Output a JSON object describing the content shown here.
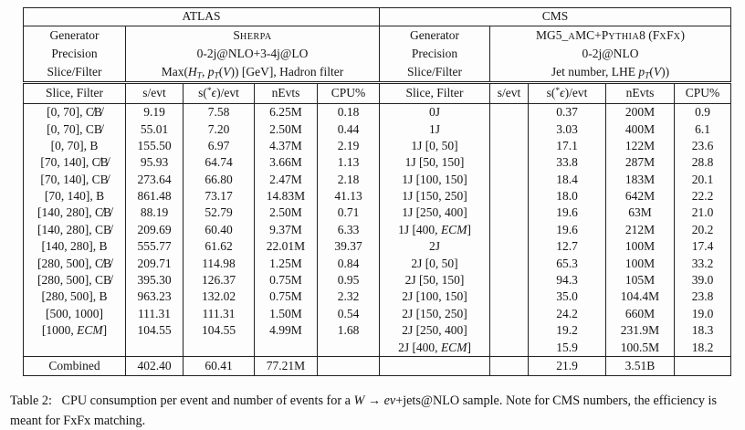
{
  "colors": {
    "text": "#161616",
    "border": "#222222",
    "background": "#fdfdfd"
  },
  "atlas": {
    "title": "ATLAS",
    "meta": {
      "labels": [
        "Generator",
        "Precision",
        "Slice/Filter"
      ],
      "generator": "S<span class=\"sc\">HERPA</span>",
      "precision": "0-2j@NLO+3-4j@LO",
      "slice_filter": "Max(<i>H<sub>T</sub></i>, <i>p<sub>T</sub></i>(<i>V</i>)) [GeV], Hadron filter"
    },
    "columns": [
      "Slice, Filter",
      "s/evt",
      "s(<sup>*</sup><i>ϵ</i>)/evt",
      "nEvts",
      "CPU%"
    ],
    "rows": [
      [
        "[0, 70], C̸B̸",
        "9.19",
        "7.58",
        "6.25M",
        "0.18"
      ],
      [
        "[0, 70], CB̸",
        "55.01",
        "7.20",
        "2.50M",
        "0.44"
      ],
      [
        "[0, 70], B",
        "155.50",
        "6.97",
        "4.37M",
        "2.19"
      ],
      [
        "[70, 140], C̸B̸",
        "95.93",
        "64.74",
        "3.66M",
        "1.13"
      ],
      [
        "[70, 140], CB̸",
        "273.64",
        "66.80",
        "2.47M",
        "2.18"
      ],
      [
        "[70, 140], B",
        "861.48",
        "73.17",
        "14.83M",
        "41.13"
      ],
      [
        "[140, 280], C̸B̸",
        "88.19",
        "52.79",
        "2.50M",
        "0.71"
      ],
      [
        "[140, 280], CB̸",
        "209.69",
        "60.40",
        "9.37M",
        "6.33"
      ],
      [
        "[140, 280], B",
        "555.77",
        "61.62",
        "22.01M",
        "39.37"
      ],
      [
        "[280, 500], C̸B̸",
        "209.71",
        "114.98",
        "1.25M",
        "0.84"
      ],
      [
        "[280, 500], CB̸",
        "395.30",
        "126.37",
        "0.75M",
        "0.95"
      ],
      [
        "[280, 500], B",
        "963.23",
        "132.02",
        "0.75M",
        "2.32"
      ],
      [
        "[500, 1000]",
        "111.31",
        "111.31",
        "1.50M",
        "0.54"
      ],
      [
        "[1000, <i>ECM</i>]",
        "104.55",
        "104.55",
        "4.99M",
        "1.68"
      ],
      [
        "",
        "",
        "",
        "",
        ""
      ]
    ],
    "combined": [
      "Combined",
      "402.40",
      "60.41",
      "77.21M",
      ""
    ]
  },
  "cms": {
    "title": "CMS",
    "meta": {
      "labels": [
        "Generator",
        "Precision",
        "Slice/Filter"
      ],
      "generator": "MG5_<span class=\"sc\">A</span>MC+P<span class=\"sc\">YTHIA</span>8 (F<span class=\"sc\">X</span>F<span class=\"sc\">X</span>)",
      "precision": "0-2j@NLO",
      "slice_filter": "Jet number, LHE <i>p<sub>T</sub></i>(<i>V</i>))"
    },
    "columns": [
      "Slice, Filter",
      "s/evt",
      "s(<sup>*</sup><i>ϵ</i>)/evt",
      "nEvts",
      "CPU%"
    ],
    "rows": [
      [
        "0J",
        "",
        "0.37",
        "200M",
        "0.9"
      ],
      [
        "1J",
        "",
        "3.03",
        "400M",
        "6.1"
      ],
      [
        "1J [0, 50]",
        "",
        "17.1",
        "122M",
        "23.6"
      ],
      [
        "1J [50, 150]",
        "",
        "33.8",
        "287M",
        "28.8"
      ],
      [
        "1J [100, 150]",
        "",
        "18.4",
        "183M",
        "20.1"
      ],
      [
        "1J [150, 250]",
        "",
        "18.0",
        "642M",
        "22.2"
      ],
      [
        "1J [250, 400]",
        "",
        "19.6",
        "63M",
        "21.0"
      ],
      [
        "1J [400, <i>ECM</i>]",
        "",
        "19.6",
        "212M",
        "20.2"
      ],
      [
        "2J",
        "",
        "12.7",
        "100M",
        "17.4"
      ],
      [
        "2J [0, 50]",
        "",
        "65.3",
        "100M",
        "33.2"
      ],
      [
        "2J [50, 150]",
        "",
        "94.3",
        "105M",
        "39.0"
      ],
      [
        "2J [100, 150]",
        "",
        "35.0",
        "104.4M",
        "23.8"
      ],
      [
        "2J [150, 250]",
        "",
        "24.2",
        "660M",
        "19.0"
      ],
      [
        "2J [250, 400]",
        "",
        "19.2",
        "231.9M",
        "18.3"
      ],
      [
        "2J [400, <i>ECM</i>]",
        "",
        "15.9",
        "100.5M",
        "18.2"
      ]
    ],
    "combined": [
      "",
      "",
      "21.9",
      "3.51B",
      ""
    ]
  },
  "caption_html": "Table 2:  CPU consumption per event and number of events for a <i>W</i> → <i>eν</i>+jets@NLO sample. Note for CMS numbers, the efficiency is meant for FxFx matching."
}
